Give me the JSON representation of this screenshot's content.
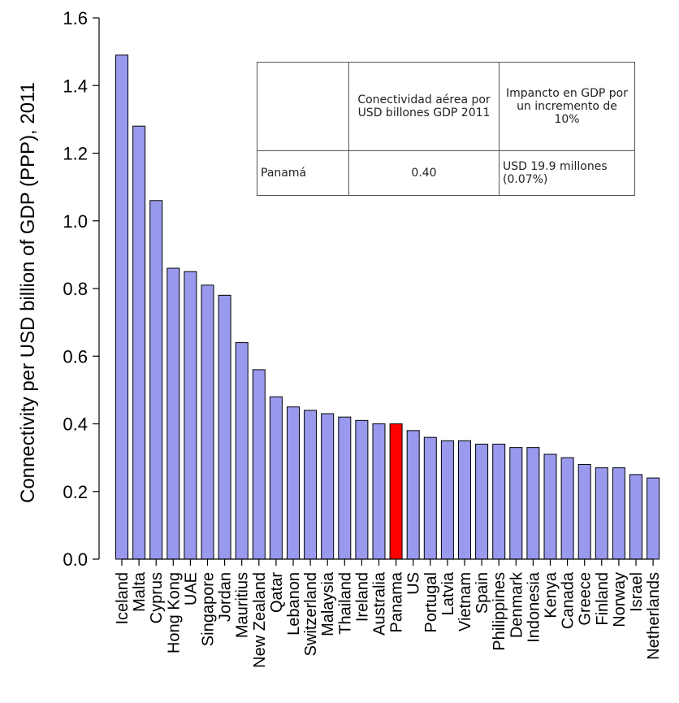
{
  "chart_data": {
    "type": "bar",
    "title": "",
    "xlabel": "",
    "ylabel": "Connectivity per USD billion of GDP (PPP), 2011",
    "ylim": [
      0,
      1.6
    ],
    "yticks": [
      "0.0",
      "0.2",
      "0.4",
      "0.6",
      "0.8",
      "1.0",
      "1.2",
      "1.4",
      "1.6"
    ],
    "bar_color": "#9999ee",
    "highlight_color": "#ff0000",
    "highlight_category": "Panama",
    "grid": false,
    "categories": [
      "Iceland",
      "Malta",
      "Cyprus",
      "Hong Kong",
      "UAE",
      "Singapore",
      "Jordan",
      "Mauritius",
      "New Zealand",
      "Qatar",
      "Lebanon",
      "Switzerland",
      "Malaysia",
      "Thailand",
      "Ireland",
      "Australia",
      "Panama",
      "US",
      "Portugal",
      "Latvia",
      "Vietnam",
      "Spain",
      "Philippines",
      "Denmark",
      "Indonesia",
      "Kenya",
      "Canada",
      "Greece",
      "Finland",
      "Norway",
      "Israel",
      "Netherlands"
    ],
    "values": [
      1.49,
      1.28,
      1.06,
      0.86,
      0.85,
      0.81,
      0.78,
      0.64,
      0.56,
      0.48,
      0.45,
      0.44,
      0.43,
      0.42,
      0.41,
      0.4,
      0.4,
      0.38,
      0.36,
      0.35,
      0.35,
      0.34,
      0.34,
      0.33,
      0.33,
      0.31,
      0.3,
      0.28,
      0.27,
      0.27,
      0.25,
      0.24
    ]
  },
  "table": {
    "header": {
      "col1": "",
      "col2": "Conectividad aérea por USD billones GDP 2011",
      "col3": "Impancto en GDP por un incremento de 10%"
    },
    "row": {
      "country": "Panamá",
      "connectivity": "0.40",
      "impact": "USD  19.9 millones (0.07%)"
    }
  }
}
